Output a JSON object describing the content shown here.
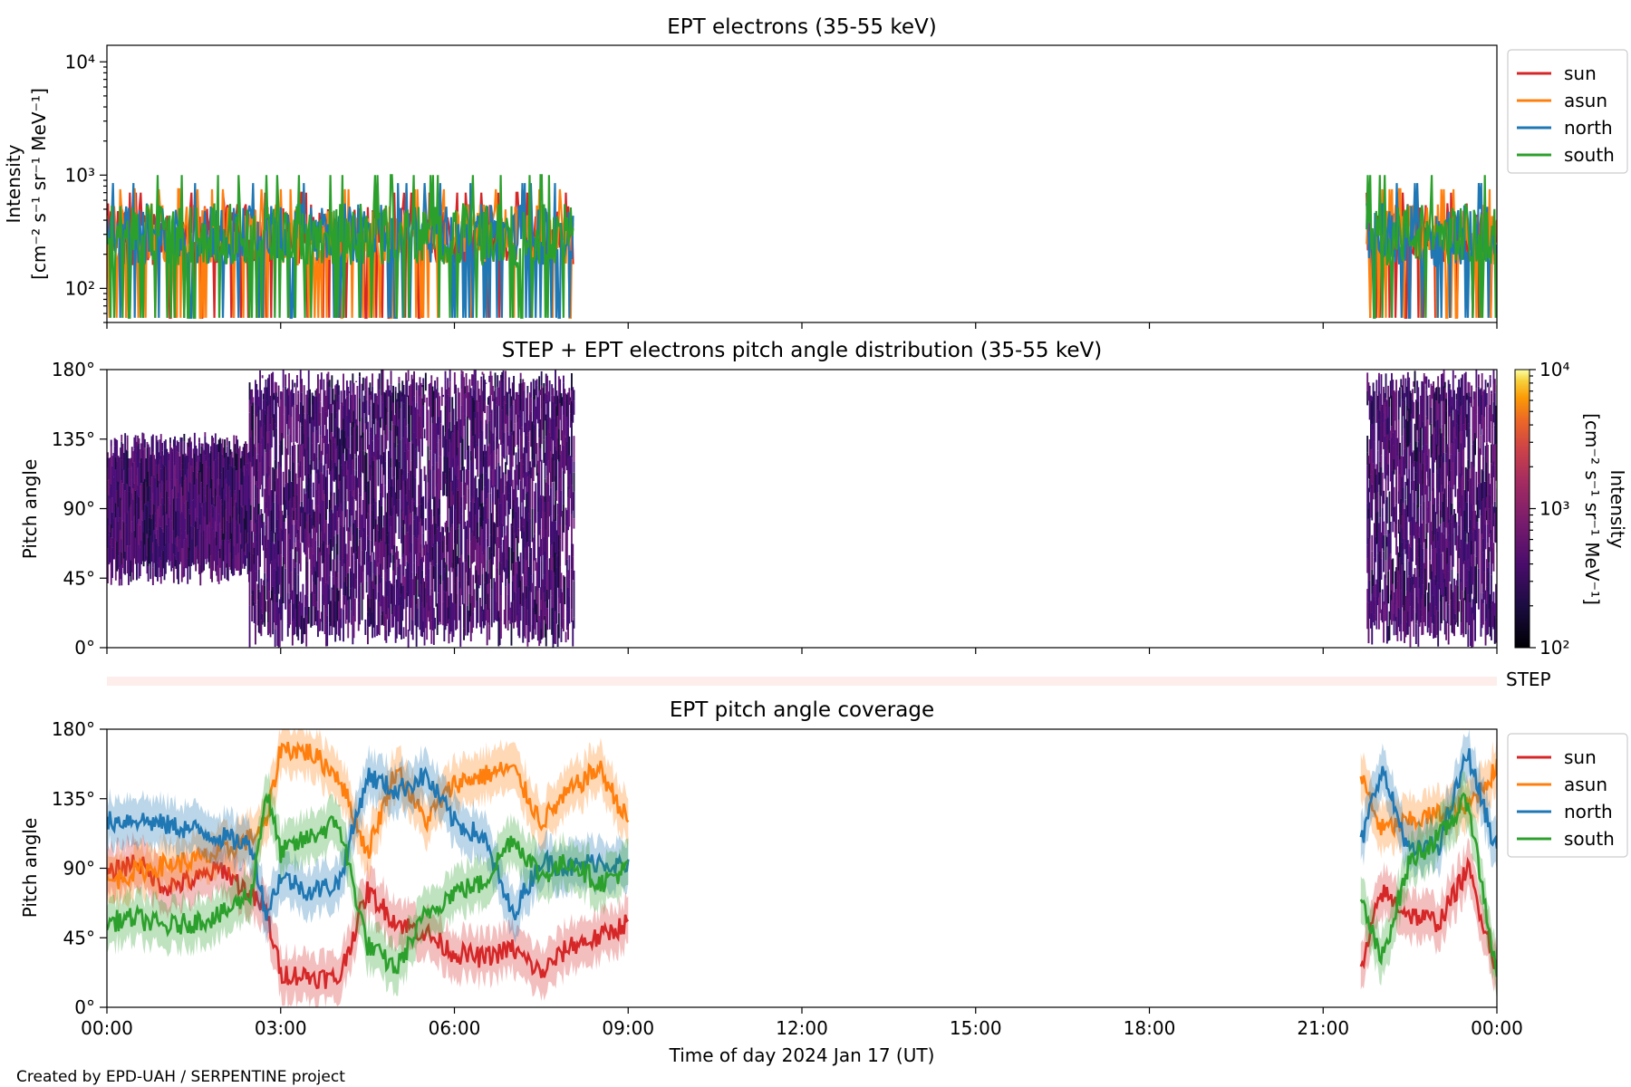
{
  "figure": {
    "credit": "Created by EPD-UAH / SERPENTINE project",
    "xlabel": "Time of day 2024 Jan 17 (UT)",
    "x_ticks": [
      "00:00",
      "03:00",
      "06:00",
      "09:00",
      "12:00",
      "15:00",
      "18:00",
      "21:00",
      "00:00"
    ],
    "x_tick_hours": [
      0,
      3,
      6,
      9,
      12,
      15,
      18,
      21,
      24
    ]
  },
  "colors": {
    "sun": "#d62728",
    "asun": "#ff7f0e",
    "north": "#1f77b4",
    "south": "#2ca02c",
    "step_band": "#fdeeeb"
  },
  "chart_data": [
    {
      "type": "line",
      "title": "EPT electrons (35-55 keV)",
      "ylabel_line1": "Intensity",
      "ylabel_line2": "[cm⁻² s⁻¹ sr⁻¹ MeV⁻¹]",
      "yscale": "log",
      "ylim": [
        50,
        14000
      ],
      "yticks": [
        {
          "value": 100,
          "label": "10²"
        },
        {
          "value": 1000,
          "label": "10³"
        },
        {
          "value": 10000,
          "label": "10⁴"
        }
      ],
      "xlim_hours": [
        0,
        24
      ],
      "data_gap_hours": [
        8.05,
        21.75
      ],
      "legend_position": "outside-right",
      "series": [
        {
          "name": "sun",
          "typical_value": 300,
          "range": [
            55,
            700
          ]
        },
        {
          "name": "asun",
          "typical_value": 300,
          "range": [
            55,
            750
          ]
        },
        {
          "name": "north",
          "typical_value": 300,
          "range": [
            55,
            850
          ]
        },
        {
          "name": "south",
          "typical_value": 300,
          "range": [
            55,
            1000
          ]
        }
      ],
      "segments_hours": [
        [
          0,
          8.05
        ],
        [
          21.75,
          24
        ]
      ]
    },
    {
      "type": "heatmap",
      "title": "STEP + EPT electrons pitch angle distribution (35-55 keV)",
      "ylabel": "Pitch angle",
      "ylim": [
        0,
        180
      ],
      "yticks": [
        {
          "value": 0,
          "label": "0°"
        },
        {
          "value": 45,
          "label": "45°"
        },
        {
          "value": 90,
          "label": "90°"
        },
        {
          "value": 135,
          "label": "135°"
        },
        {
          "value": 180,
          "label": "180°"
        }
      ],
      "colorbar": {
        "label_line1": "Intensity",
        "label_line2": "[cm⁻² s⁻¹ sr⁻¹ MeV⁻¹]",
        "scale": "log",
        "range": [
          100,
          10000
        ],
        "ticks": [
          {
            "value": 100,
            "label": "10²"
          },
          {
            "value": 1000,
            "label": "10³"
          },
          {
            "value": 10000,
            "label": "10⁴"
          }
        ],
        "colormap": "inferno"
      },
      "typical_intensity": 250,
      "coverage": [
        {
          "hours": [
            0,
            2.45
          ],
          "pitch_range": [
            40,
            140
          ]
        },
        {
          "hours": [
            2.45,
            8.05
          ],
          "pitch_range": [
            0,
            180
          ]
        },
        {
          "hours": [
            21.75,
            24
          ],
          "pitch_range": [
            0,
            180
          ]
        }
      ]
    },
    {
      "type": "band",
      "label": "STEP",
      "xlim_hours": [
        0,
        24
      ]
    },
    {
      "type": "line",
      "title": "EPT pitch angle coverage",
      "ylabel": "Pitch angle",
      "ylim": [
        0,
        180
      ],
      "yticks": [
        {
          "value": 0,
          "label": "0°"
        },
        {
          "value": 45,
          "label": "45°"
        },
        {
          "value": 90,
          "label": "90°"
        },
        {
          "value": 135,
          "label": "135°"
        },
        {
          "value": 180,
          "label": "180°"
        }
      ],
      "legend_position": "outside-right",
      "shaded_band_half_width_deg": 15,
      "segments_hours": [
        [
          0,
          9.0
        ],
        [
          21.65,
          24
        ]
      ],
      "series": [
        {
          "name": "sun",
          "points": [
            [
              0,
              85
            ],
            [
              0.5,
              95
            ],
            [
              1,
              78
            ],
            [
              1.5,
              82
            ],
            [
              2,
              90
            ],
            [
              2.5,
              72
            ],
            [
              2.75,
              62
            ],
            [
              3,
              22
            ],
            [
              3.5,
              20
            ],
            [
              4,
              18
            ],
            [
              4.5,
              75
            ],
            [
              5,
              55
            ],
            [
              5.5,
              48
            ],
            [
              6,
              35
            ],
            [
              6.5,
              32
            ],
            [
              7,
              38
            ],
            [
              7.5,
              22
            ],
            [
              8,
              40
            ],
            [
              8.5,
              45
            ],
            [
              9,
              55
            ],
            [
              21.65,
              22
            ],
            [
              22,
              75
            ],
            [
              22.5,
              60
            ],
            [
              23,
              55
            ],
            [
              23.5,
              90
            ],
            [
              24,
              25
            ]
          ]
        },
        {
          "name": "asun",
          "points": [
            [
              0,
              80
            ],
            [
              0.5,
              88
            ],
            [
              1,
              92
            ],
            [
              1.5,
              95
            ],
            [
              2,
              100
            ],
            [
              2.5,
              110
            ],
            [
              2.75,
              118
            ],
            [
              3,
              168
            ],
            [
              3.5,
              165
            ],
            [
              4,
              150
            ],
            [
              4.5,
              100
            ],
            [
              5,
              155
            ],
            [
              5.5,
              120
            ],
            [
              6,
              145
            ],
            [
              6.5,
              150
            ],
            [
              7,
              155
            ],
            [
              7.5,
              120
            ],
            [
              8,
              140
            ],
            [
              8.5,
              155
            ],
            [
              9,
              120
            ],
            [
              21.65,
              150
            ],
            [
              22,
              115
            ],
            [
              22.5,
              120
            ],
            [
              23,
              125
            ],
            [
              23.5,
              130
            ],
            [
              24,
              155
            ]
          ]
        },
        {
          "name": "north",
          "points": [
            [
              0,
              120
            ],
            [
              0.5,
              122
            ],
            [
              1,
              118
            ],
            [
              1.5,
              115
            ],
            [
              2,
              110
            ],
            [
              2.5,
              105
            ],
            [
              2.75,
              60
            ],
            [
              3,
              85
            ],
            [
              3.5,
              75
            ],
            [
              4,
              80
            ],
            [
              4.5,
              150
            ],
            [
              5,
              140
            ],
            [
              5.5,
              150
            ],
            [
              6,
              120
            ],
            [
              6.5,
              110
            ],
            [
              7,
              60
            ],
            [
              7.5,
              95
            ],
            [
              8,
              90
            ],
            [
              8.5,
              95
            ],
            [
              9,
              90
            ],
            [
              21.65,
              105
            ],
            [
              22,
              155
            ],
            [
              22.5,
              100
            ],
            [
              23,
              105
            ],
            [
              23.5,
              165
            ],
            [
              24,
              100
            ]
          ]
        },
        {
          "name": "south",
          "points": [
            [
              0,
              55
            ],
            [
              0.5,
              58
            ],
            [
              1,
              52
            ],
            [
              1.5,
              55
            ],
            [
              2,
              60
            ],
            [
              2.5,
              75
            ],
            [
              2.75,
              140
            ],
            [
              3,
              100
            ],
            [
              3.5,
              110
            ],
            [
              4,
              120
            ],
            [
              4.5,
              40
            ],
            [
              5,
              25
            ],
            [
              5.5,
              60
            ],
            [
              6,
              75
            ],
            [
              6.5,
              80
            ],
            [
              7,
              110
            ],
            [
              7.5,
              85
            ],
            [
              8,
              95
            ],
            [
              8.5,
              80
            ],
            [
              9,
              90
            ],
            [
              21.65,
              70
            ],
            [
              22,
              30
            ],
            [
              22.5,
              95
            ],
            [
              23,
              110
            ],
            [
              23.5,
              135
            ],
            [
              24,
              20
            ]
          ]
        }
      ]
    }
  ]
}
